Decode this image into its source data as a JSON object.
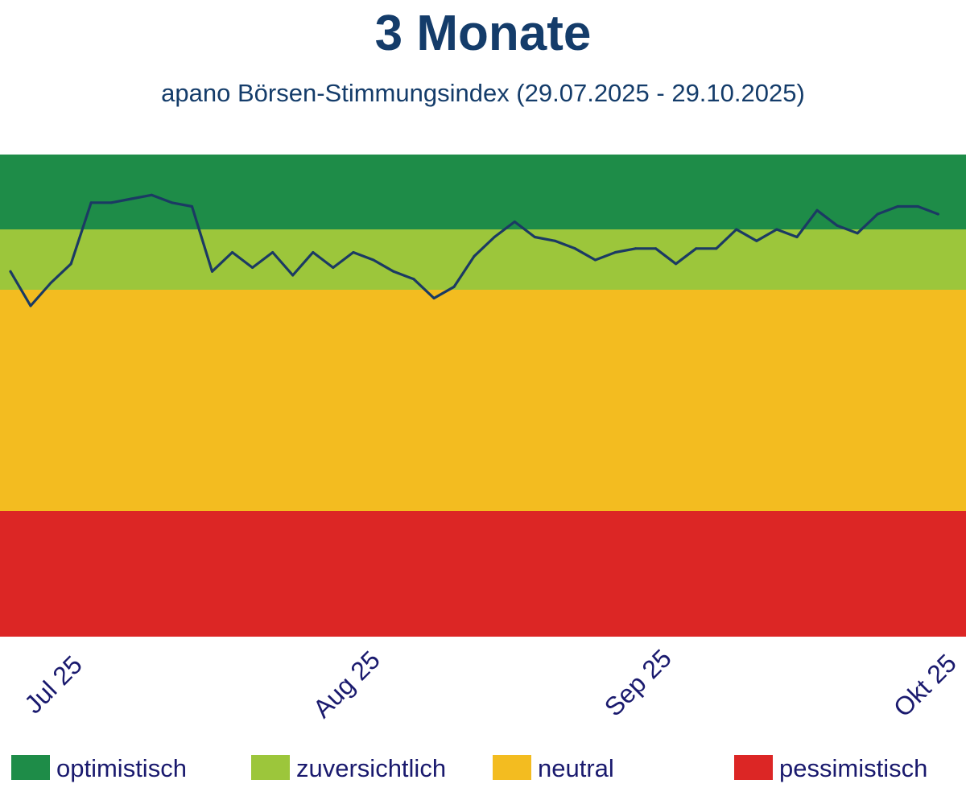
{
  "chart_data": {
    "type": "line",
    "title": "3 Monate",
    "subtitle": "apano Börsen-Stimmungsindex (29.07.2025 - 29.10.2025)",
    "xlabel": "",
    "ylabel": "",
    "x_ticks": [
      "Jul 25",
      "Aug 25",
      "Sep 25",
      "Okt 25"
    ],
    "grid": false,
    "legend_position": "bottom",
    "line_color": "#1b3a63",
    "bands": [
      {
        "name": "optimistisch",
        "color": "#1e8c48"
      },
      {
        "name": "zuversichtlich",
        "color": "#9cc63b"
      },
      {
        "name": "neutral",
        "color": "#f3bc20"
      },
      {
        "name": "pessimistisch",
        "color": "#dc2625"
      }
    ],
    "values": [
      74,
      65,
      71,
      76,
      92,
      92,
      93,
      94,
      92,
      91,
      74,
      79,
      75,
      79,
      73,
      79,
      75,
      79,
      77,
      74,
      72,
      67,
      70,
      78,
      83,
      87,
      83,
      82,
      80,
      77,
      79,
      80,
      80,
      76,
      80,
      80,
      85,
      82,
      85,
      83,
      90,
      86,
      84,
      89,
      91,
      91,
      89
    ]
  },
  "colors": {
    "title": "#143c6a",
    "subtitle": "#143c6a",
    "ticks": "#1a1a6e",
    "legend_text": "#1a1a6e"
  }
}
